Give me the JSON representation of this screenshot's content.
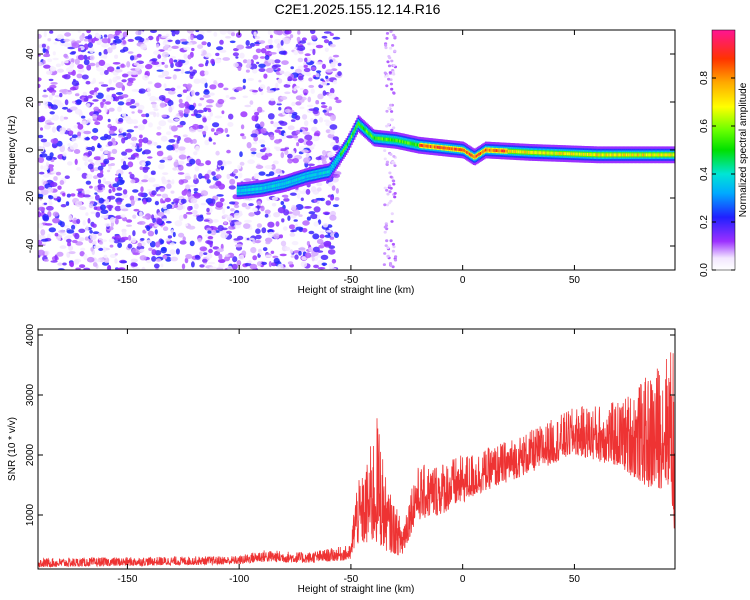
{
  "title": "C2E1.2025.155.12.14.R16",
  "chart_data": [
    {
      "type": "heatmap",
      "xlabel": "Height of straight line (km)",
      "ylabel": "Frequency (Hz)",
      "xlim": [
        -190,
        95
      ],
      "ylim": [
        -50,
        50
      ],
      "x_ticks": [
        -150,
        -100,
        -50,
        0,
        50
      ],
      "y_ticks": [
        -40,
        -20,
        0,
        20,
        40
      ],
      "colorbar": {
        "label": "Normalized spectral amplitude",
        "range": [
          0,
          1
        ],
        "ticks": [
          "0.0",
          "0.2",
          "0.4",
          "0.6",
          "0.8"
        ]
      },
      "ridge": [
        {
          "x": -100,
          "y": -17
        },
        {
          "x": -90,
          "y": -16
        },
        {
          "x": -80,
          "y": -14
        },
        {
          "x": -70,
          "y": -11
        },
        {
          "x": -60,
          "y": -9
        },
        {
          "x": -52,
          "y": 2
        },
        {
          "x": -47,
          "y": 11
        },
        {
          "x": -40,
          "y": 5
        },
        {
          "x": -30,
          "y": 4
        },
        {
          "x": -20,
          "y": 2
        },
        {
          "x": -10,
          "y": 1
        },
        {
          "x": 0,
          "y": 0
        },
        {
          "x": 5,
          "y": -3
        },
        {
          "x": 10,
          "y": 0
        },
        {
          "x": 30,
          "y": -1
        },
        {
          "x": 60,
          "y": -2
        },
        {
          "x": 95,
          "y": -2
        }
      ],
      "noise_region_x": [
        -190,
        -55
      ],
      "grid": false,
      "legend": "none"
    },
    {
      "type": "line",
      "xlabel": "Height of straight line (km)",
      "ylabel": "SNR (10 * v/v)",
      "xlim": [
        -190,
        95
      ],
      "ylim": [
        100,
        4100
      ],
      "x_ticks": [
        -150,
        -100,
        -50,
        0,
        50
      ],
      "y_ticks": [
        1000,
        2000,
        3000,
        4000
      ],
      "series": [
        {
          "color": "#ee3333",
          "envelope": [
            {
              "x": -190,
              "low": 130,
              "high": 280
            },
            {
              "x": -100,
              "low": 180,
              "high": 320
            },
            {
              "x": -90,
              "low": 220,
              "high": 420
            },
            {
              "x": -70,
              "low": 200,
              "high": 380
            },
            {
              "x": -50,
              "low": 250,
              "high": 500
            },
            {
              "x": -48,
              "low": 500,
              "high": 1500
            },
            {
              "x": -44,
              "low": 500,
              "high": 1700
            },
            {
              "x": -38,
              "low": 500,
              "high": 2700
            },
            {
              "x": -34,
              "low": 400,
              "high": 1500
            },
            {
              "x": -27,
              "low": 300,
              "high": 900
            },
            {
              "x": -21,
              "low": 900,
              "high": 1800
            },
            {
              "x": -10,
              "low": 1000,
              "high": 1900
            },
            {
              "x": 10,
              "low": 1400,
              "high": 2100
            },
            {
              "x": 30,
              "low": 1700,
              "high": 2400
            },
            {
              "x": 50,
              "low": 2000,
              "high": 2800
            },
            {
              "x": 70,
              "low": 1800,
              "high": 2900
            },
            {
              "x": 85,
              "low": 1400,
              "high": 3400
            },
            {
              "x": 93,
              "low": 1500,
              "high": 3800
            },
            {
              "x": 95,
              "low": 400,
              "high": 4100
            }
          ]
        }
      ],
      "grid": false,
      "legend": "none"
    }
  ]
}
